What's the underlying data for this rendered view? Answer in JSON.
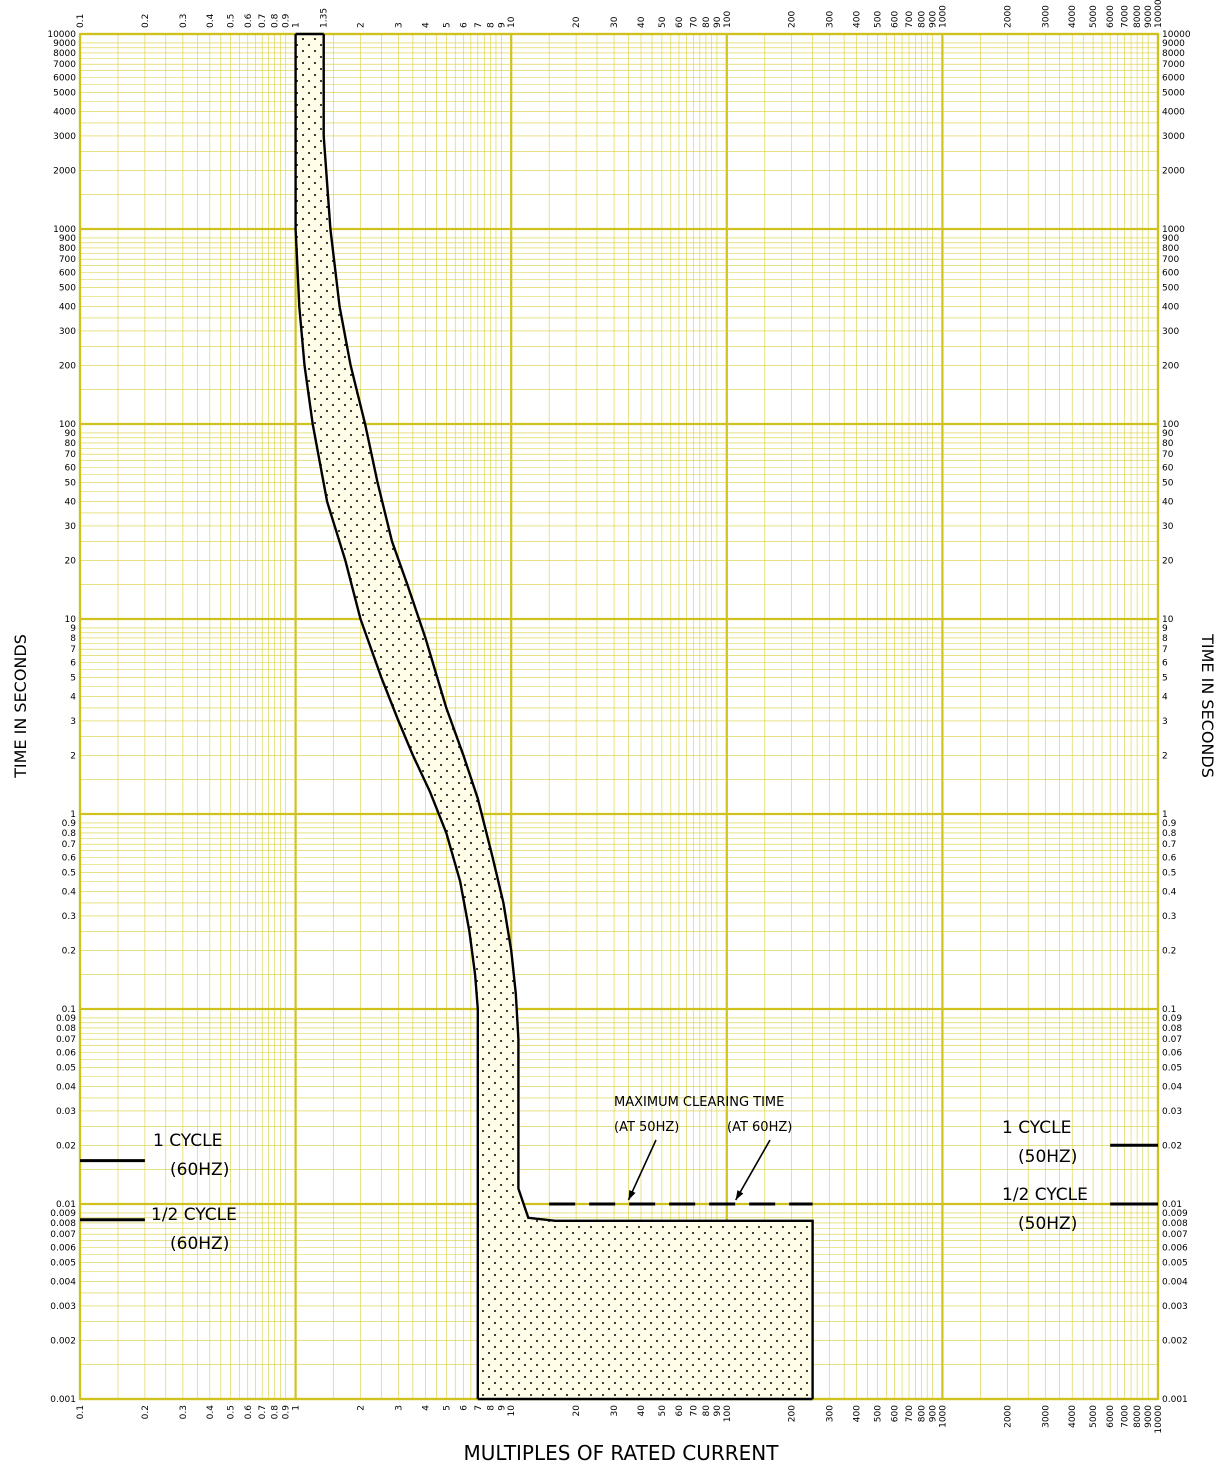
{
  "chart_data": {
    "type": "line",
    "xlabel": "MULTIPLES OF RATED CURRENT",
    "ylabel": "TIME IN SECONDS",
    "x_scale": "log",
    "y_scale": "log",
    "xlim": [
      0.1,
      10000
    ],
    "ylim": [
      0.001,
      10000
    ],
    "grid": true,
    "colors": {
      "grid": "#d9cf3a",
      "major_grid": "#cfc21e",
      "curve": "#000000",
      "background": "#ffffff"
    },
    "x_tick_labels": [
      {
        "v": 0.1,
        "t": "0.1"
      },
      {
        "v": 0.2,
        "t": "0.2"
      },
      {
        "v": 0.3,
        "t": "0.3"
      },
      {
        "v": 0.4,
        "t": "0.4"
      },
      {
        "v": 0.5,
        "t": "0.5"
      },
      {
        "v": 0.6,
        "t": "0.6"
      },
      {
        "v": 0.7,
        "t": "0.7"
      },
      {
        "v": 0.8,
        "t": "0.8"
      },
      {
        "v": 0.9,
        "t": "0.9"
      },
      {
        "v": 1,
        "t": "1"
      },
      {
        "v": 2,
        "t": "2"
      },
      {
        "v": 3,
        "t": "3"
      },
      {
        "v": 4,
        "t": "4"
      },
      {
        "v": 5,
        "t": "5"
      },
      {
        "v": 6,
        "t": "6"
      },
      {
        "v": 7,
        "t": "7"
      },
      {
        "v": 8,
        "t": "8"
      },
      {
        "v": 9,
        "t": "9"
      },
      {
        "v": 10,
        "t": "10"
      },
      {
        "v": 20,
        "t": "20"
      },
      {
        "v": 30,
        "t": "30"
      },
      {
        "v": 40,
        "t": "40"
      },
      {
        "v": 50,
        "t": "50"
      },
      {
        "v": 60,
        "t": "60"
      },
      {
        "v": 70,
        "t": "70"
      },
      {
        "v": 80,
        "t": "80"
      },
      {
        "v": 90,
        "t": "90"
      },
      {
        "v": 100,
        "t": "100"
      },
      {
        "v": 200,
        "t": "200"
      },
      {
        "v": 300,
        "t": "300"
      },
      {
        "v": 400,
        "t": "400"
      },
      {
        "v": 500,
        "t": "500"
      },
      {
        "v": 600,
        "t": "600"
      },
      {
        "v": 700,
        "t": "700"
      },
      {
        "v": 800,
        "t": "800"
      },
      {
        "v": 900,
        "t": "900"
      },
      {
        "v": 1000,
        "t": "1000"
      },
      {
        "v": 2000,
        "t": "2000"
      },
      {
        "v": 3000,
        "t": "3000"
      },
      {
        "v": 4000,
        "t": "4000"
      },
      {
        "v": 5000,
        "t": "5000"
      },
      {
        "v": 6000,
        "t": "6000"
      },
      {
        "v": 7000,
        "t": "7000"
      },
      {
        "v": 8000,
        "t": "8000"
      },
      {
        "v": 9000,
        "t": "9000"
      },
      {
        "v": 10000,
        "t": "10000"
      }
    ],
    "x_top_extra_label": {
      "v": 1.35,
      "t": "1.35"
    },
    "y_tick_labels": [
      {
        "v": 0.001,
        "t": "0.001"
      },
      {
        "v": 0.002,
        "t": "0.002"
      },
      {
        "v": 0.003,
        "t": "0.003"
      },
      {
        "v": 0.004,
        "t": "0.004"
      },
      {
        "v": 0.005,
        "t": "0.005"
      },
      {
        "v": 0.006,
        "t": "0.006"
      },
      {
        "v": 0.007,
        "t": "0.007"
      },
      {
        "v": 0.008,
        "t": "0.008"
      },
      {
        "v": 0.009,
        "t": "0.009"
      },
      {
        "v": 0.01,
        "t": "0.01"
      },
      {
        "v": 0.02,
        "t": "0.02"
      },
      {
        "v": 0.03,
        "t": "0.03"
      },
      {
        "v": 0.04,
        "t": "0.04"
      },
      {
        "v": 0.05,
        "t": "0.05"
      },
      {
        "v": 0.06,
        "t": "0.06"
      },
      {
        "v": 0.07,
        "t": "0.07"
      },
      {
        "v": 0.08,
        "t": "0.08"
      },
      {
        "v": 0.09,
        "t": "0.09"
      },
      {
        "v": 0.1,
        "t": "0.1"
      },
      {
        "v": 0.2,
        "t": "0.2"
      },
      {
        "v": 0.3,
        "t": "0.3"
      },
      {
        "v": 0.4,
        "t": "0.4"
      },
      {
        "v": 0.5,
        "t": "0.5"
      },
      {
        "v": 0.6,
        "t": "0.6"
      },
      {
        "v": 0.7,
        "t": "0.7"
      },
      {
        "v": 0.8,
        "t": "0.8"
      },
      {
        "v": 0.9,
        "t": "0.9"
      },
      {
        "v": 1,
        "t": "1"
      },
      {
        "v": 2,
        "t": "2"
      },
      {
        "v": 3,
        "t": "3"
      },
      {
        "v": 4,
        "t": "4"
      },
      {
        "v": 5,
        "t": "5"
      },
      {
        "v": 6,
        "t": "6"
      },
      {
        "v": 7,
        "t": "7"
      },
      {
        "v": 8,
        "t": "8"
      },
      {
        "v": 9,
        "t": "9"
      },
      {
        "v": 10,
        "t": "10"
      },
      {
        "v": 20,
        "t": "20"
      },
      {
        "v": 30,
        "t": "30"
      },
      {
        "v": 40,
        "t": "40"
      },
      {
        "v": 50,
        "t": "50"
      },
      {
        "v": 60,
        "t": "60"
      },
      {
        "v": 70,
        "t": "70"
      },
      {
        "v": 80,
        "t": "80"
      },
      {
        "v": 90,
        "t": "90"
      },
      {
        "v": 100,
        "t": "100"
      },
      {
        "v": 200,
        "t": "200"
      },
      {
        "v": 300,
        "t": "300"
      },
      {
        "v": 400,
        "t": "400"
      },
      {
        "v": 500,
        "t": "500"
      },
      {
        "v": 600,
        "t": "600"
      },
      {
        "v": 700,
        "t": "700"
      },
      {
        "v": 800,
        "t": "800"
      },
      {
        "v": 900,
        "t": "900"
      },
      {
        "v": 1000,
        "t": "1000"
      },
      {
        "v": 2000,
        "t": "2000"
      },
      {
        "v": 3000,
        "t": "3000"
      },
      {
        "v": 4000,
        "t": "4000"
      },
      {
        "v": 5000,
        "t": "5000"
      },
      {
        "v": 6000,
        "t": "6000"
      },
      {
        "v": 7000,
        "t": "7000"
      },
      {
        "v": 8000,
        "t": "8000"
      },
      {
        "v": 9000,
        "t": "9000"
      },
      {
        "v": 10000,
        "t": "10000"
      }
    ],
    "series": [
      {
        "role": "minimum-time-curve",
        "points": [
          [
            1.0,
            10000
          ],
          [
            1.0,
            1000
          ],
          [
            1.04,
            400
          ],
          [
            1.1,
            200
          ],
          [
            1.2,
            100
          ],
          [
            1.4,
            40
          ],
          [
            1.7,
            20
          ],
          [
            2.0,
            10
          ],
          [
            2.5,
            5
          ],
          [
            3.0,
            3
          ],
          [
            3.5,
            2
          ],
          [
            4.2,
            1.3
          ],
          [
            5.0,
            0.8
          ],
          [
            5.8,
            0.45
          ],
          [
            6.4,
            0.25
          ],
          [
            6.8,
            0.15
          ],
          [
            7.0,
            0.1
          ],
          [
            7.0,
            0.001
          ]
        ]
      },
      {
        "role": "maximum-clearing-curve",
        "points": [
          [
            1.35,
            10000
          ],
          [
            1.35,
            3000
          ],
          [
            1.45,
            1000
          ],
          [
            1.6,
            400
          ],
          [
            1.8,
            200
          ],
          [
            2.1,
            100
          ],
          [
            2.4,
            50
          ],
          [
            2.8,
            25
          ],
          [
            3.3,
            15
          ],
          [
            4.0,
            8
          ],
          [
            5.0,
            3.5
          ],
          [
            6.0,
            2.0
          ],
          [
            7.0,
            1.2
          ],
          [
            8.2,
            0.6
          ],
          [
            9.2,
            0.35
          ],
          [
            10.0,
            0.2
          ],
          [
            10.5,
            0.12
          ],
          [
            10.8,
            0.07
          ],
          [
            10.8,
            0.012
          ],
          [
            12.0,
            0.0085
          ],
          [
            16.0,
            0.0082
          ],
          [
            250,
            0.0082
          ],
          [
            250,
            0.001
          ]
        ]
      }
    ],
    "reference_lines": [
      {
        "label": "1 CYCLE (60HZ)",
        "y": 0.0167,
        "x_range": [
          0.1,
          0.2
        ]
      },
      {
        "label": "1/2 CYCLE (60HZ)",
        "y": 0.0083,
        "x_range": [
          0.1,
          0.2
        ]
      },
      {
        "label": "1 CYCLE (50HZ)",
        "y": 0.02,
        "x_range": [
          6000,
          10000
        ]
      },
      {
        "label": "1/2 CYCLE (50HZ)",
        "y": 0.01,
        "x_range": [
          6000,
          10000
        ]
      },
      {
        "label": "maximum clearing time",
        "y": 0.01,
        "x_range": [
          15,
          250
        ],
        "style": "dashed"
      }
    ],
    "annotations": {
      "max_clearing_title": "MAXIMUM CLEARING TIME",
      "at_50hz": "(AT 50HZ)",
      "at_60hz": "(AT 60HZ)",
      "one_cycle": "1 CYCLE",
      "half_cycle": "1/2 CYCLE",
      "hz60": "(60HZ)",
      "hz50": "(50HZ)"
    },
    "arrow_targets": [
      {
        "label": "(AT 50HZ)",
        "x": 35,
        "y": 0.01
      },
      {
        "label": "(AT 60HZ)",
        "x": 110,
        "y": 0.01
      }
    ]
  }
}
